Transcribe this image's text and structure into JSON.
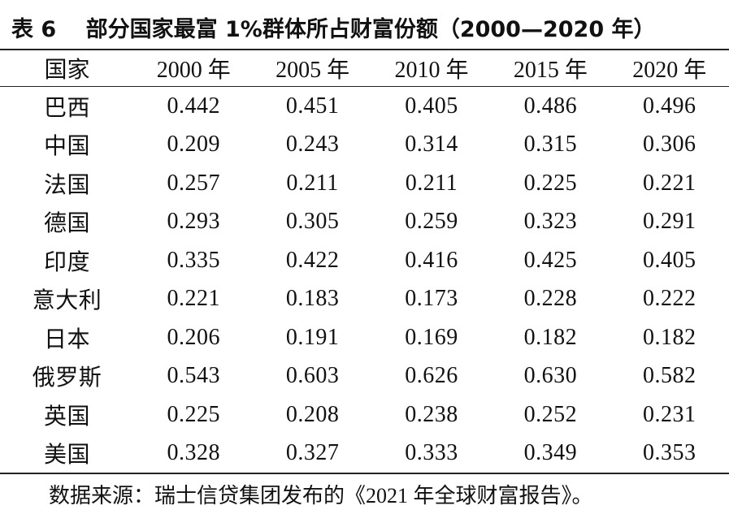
{
  "title": "表 6　 部分国家最富 1%群体所占财富份额（2000—2020 年）",
  "table": {
    "header": [
      "国家",
      "2000 年",
      "2005 年",
      "2010 年",
      "2015 年",
      "2020 年"
    ],
    "rows": [
      [
        "巴西",
        "0.442",
        "0.451",
        "0.405",
        "0.486",
        "0.496"
      ],
      [
        "中国",
        "0.209",
        "0.243",
        "0.314",
        "0.315",
        "0.306"
      ],
      [
        "法国",
        "0.257",
        "0.211",
        "0.211",
        "0.225",
        "0.221"
      ],
      [
        "德国",
        "0.293",
        "0.305",
        "0.259",
        "0.323",
        "0.291"
      ],
      [
        "印度",
        "0.335",
        "0.422",
        "0.416",
        "0.425",
        "0.405"
      ],
      [
        "意大利",
        "0.221",
        "0.183",
        "0.173",
        "0.228",
        "0.222"
      ],
      [
        "日本",
        "0.206",
        "0.191",
        "0.169",
        "0.182",
        "0.182"
      ],
      [
        "俄罗斯",
        "0.543",
        "0.603",
        "0.626",
        "0.630",
        "0.582"
      ],
      [
        "英国",
        "0.225",
        "0.208",
        "0.238",
        "0.252",
        "0.231"
      ],
      [
        "美国",
        "0.328",
        "0.327",
        "0.333",
        "0.349",
        "0.353"
      ]
    ]
  },
  "source": "数据来源：瑞士信贷集团发布的《2021 年全球财富报告》。"
}
